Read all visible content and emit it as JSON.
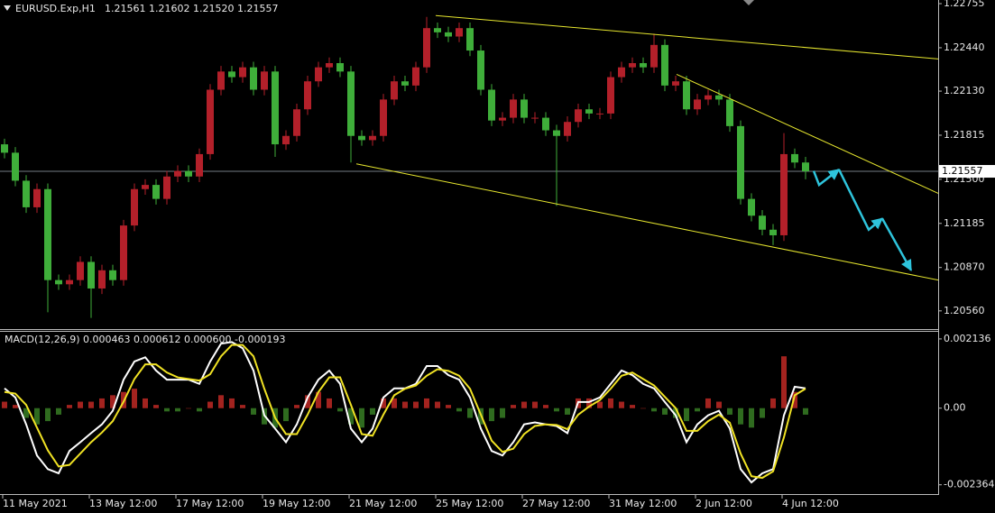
{
  "chart_data": [
    {
      "type": "candlestick",
      "title": "EURUSD.Exp,H1",
      "subtitle": "1.21561 1.21602 1.21520 1.21557",
      "up_color": "#b3202a",
      "down_color": "#3fae3a",
      "x": [
        0,
        6,
        12,
        18,
        24,
        30,
        36,
        42,
        48,
        54,
        60,
        66,
        72,
        78,
        84,
        90,
        96,
        102,
        108,
        114,
        120,
        126,
        132,
        138,
        144,
        150,
        156,
        162,
        168,
        174,
        180,
        186,
        192,
        198,
        204,
        210,
        216,
        222,
        228,
        234,
        240,
        246,
        252,
        258,
        264,
        270,
        276,
        282,
        288,
        294,
        300,
        306,
        312,
        318,
        324,
        330,
        336,
        342,
        348,
        354,
        360,
        366,
        372,
        378,
        384,
        390,
        396,
        402,
        408,
        414,
        420,
        426,
        432,
        438,
        444
      ],
      "open": [
        1.2175,
        1.2169,
        1.2149,
        1.213,
        1.2143,
        1.2078,
        1.2075,
        1.2078,
        1.2091,
        1.2072,
        1.2085,
        1.2078,
        1.2117,
        1.2143,
        1.2146,
        1.2136,
        1.2152,
        1.2156,
        1.2152,
        1.2168,
        1.2214,
        1.2227,
        1.2223,
        1.223,
        1.2214,
        1.2227,
        1.2175,
        1.2181,
        1.22,
        1.222,
        1.223,
        1.2233,
        1.2227,
        1.2181,
        1.2178,
        1.2181,
        1.2207,
        1.222,
        1.2217,
        1.223,
        1.2258,
        1.2255,
        1.2252,
        1.2258,
        1.2242,
        1.2214,
        1.2192,
        1.2194,
        1.2207,
        1.2194,
        1.2194,
        1.2185,
        1.2181,
        1.2191,
        1.22,
        1.2197,
        1.2197,
        1.2223,
        1.223,
        1.2233,
        1.223,
        1.2246,
        1.2217,
        1.222,
        1.22,
        1.2207,
        1.221,
        1.2207,
        1.2188,
        1.2136,
        1.2124,
        1.2114,
        1.211,
        1.2168,
        1.2162
      ],
      "high": [
        1.2179,
        1.2173,
        1.2153,
        1.2147,
        1.2147,
        1.2082,
        1.2082,
        1.2095,
        1.2095,
        1.2089,
        1.2089,
        1.2121,
        1.2147,
        1.215,
        1.215,
        1.2156,
        1.216,
        1.216,
        1.2172,
        1.2218,
        1.2231,
        1.2231,
        1.2234,
        1.2234,
        1.2231,
        1.2231,
        1.2185,
        1.2204,
        1.2224,
        1.2234,
        1.2237,
        1.2237,
        1.2231,
        1.2185,
        1.2185,
        1.2211,
        1.2224,
        1.2224,
        1.2234,
        1.2266,
        1.2262,
        1.2259,
        1.2262,
        1.2262,
        1.2246,
        1.2218,
        1.2198,
        1.2211,
        1.2211,
        1.2198,
        1.2198,
        1.2189,
        1.2195,
        1.2204,
        1.2204,
        1.2201,
        1.2227,
        1.2234,
        1.2237,
        1.2237,
        1.2254,
        1.225,
        1.2224,
        1.2224,
        1.2211,
        1.2214,
        1.2214,
        1.2211,
        1.2192,
        1.214,
        1.2128,
        1.2118,
        1.2183,
        1.2172,
        1.2166
      ],
      "low": [
        1.2165,
        1.2145,
        1.2126,
        1.2126,
        1.2055,
        1.2071,
        1.2071,
        1.2074,
        1.2051,
        1.2068,
        1.2074,
        1.2074,
        1.2113,
        1.2139,
        1.2132,
        1.2132,
        1.2148,
        1.2148,
        1.2148,
        1.2164,
        1.221,
        1.2219,
        1.2219,
        1.221,
        1.221,
        1.2166,
        1.2171,
        1.2177,
        1.2196,
        1.2216,
        1.2226,
        1.2223,
        1.2162,
        1.2174,
        1.2174,
        1.2177,
        1.2203,
        1.2213,
        1.2213,
        1.2226,
        1.2251,
        1.2248,
        1.2248,
        1.2238,
        1.221,
        1.2188,
        1.2188,
        1.219,
        1.219,
        1.219,
        1.2181,
        1.2131,
        1.2177,
        1.2187,
        1.2193,
        1.2193,
        1.2193,
        1.2219,
        1.2226,
        1.2226,
        1.2226,
        1.2213,
        1.2213,
        1.2196,
        1.2196,
        1.2203,
        1.2203,
        1.2184,
        1.2132,
        1.212,
        1.211,
        1.2103,
        1.2106,
        1.2158,
        1.215
      ],
      "close": [
        1.2169,
        1.2149,
        1.213,
        1.2143,
        1.2078,
        1.2075,
        1.2078,
        1.2091,
        1.2072,
        1.2085,
        1.2078,
        1.2117,
        1.2143,
        1.2146,
        1.2136,
        1.2152,
        1.2156,
        1.2152,
        1.2168,
        1.2214,
        1.2227,
        1.2223,
        1.223,
        1.2214,
        1.2227,
        1.2175,
        1.2181,
        1.22,
        1.222,
        1.223,
        1.2233,
        1.2227,
        1.2181,
        1.2178,
        1.2181,
        1.2207,
        1.222,
        1.2217,
        1.223,
        1.2258,
        1.2255,
        1.2252,
        1.2258,
        1.2242,
        1.2214,
        1.2192,
        1.2194,
        1.2207,
        1.2194,
        1.2194,
        1.2185,
        1.2181,
        1.2191,
        1.22,
        1.2197,
        1.2197,
        1.2223,
        1.223,
        1.2233,
        1.223,
        1.2246,
        1.2217,
        1.222,
        1.22,
        1.2207,
        1.221,
        1.2207,
        1.2188,
        1.2136,
        1.2124,
        1.2114,
        1.211,
        1.2168,
        1.2162,
        1.21557
      ],
      "current_price": 1.21557,
      "trendlines": [
        {
          "color": "#e6e62e",
          "x": [
            239,
            517.5
          ],
          "y": [
            1.2267,
            1.2236
          ]
        },
        {
          "color": "#e6e62e",
          "x": [
            195,
            517.5
          ],
          "y": [
            1.2161,
            1.2078
          ]
        },
        {
          "color": "#e6e62e",
          "x": [
            372.5,
            517.5
          ],
          "y": [
            1.2225,
            1.214
          ]
        }
      ],
      "arrows": [
        {
          "color": "#2ec4dc",
          "x": [
            448.5,
            451.5,
            462.5
          ],
          "y": [
            1.2156,
            1.2146,
            1.2157
          ]
        },
        {
          "color": "#2ec4dc",
          "x": [
            462.5,
            479,
            486.5
          ],
          "y": [
            1.2157,
            1.2114,
            1.2122
          ]
        },
        {
          "color": "#2ec4dc",
          "x": [
            486.5,
            502.5
          ],
          "y": [
            1.2122,
            1.2085
          ]
        }
      ],
      "xlim": [
        -2.5,
        517.5
      ],
      "ylim": [
        1.2043,
        1.22781
      ],
      "yticks": [
        1.22755,
        {
          "value": 1.2244,
          "label": "1.22440"
        },
        {
          "value": 1.2213,
          "label": "1.22130"
        },
        1.21815,
        {
          "value": 1.215,
          "label": "1.21500"
        },
        1.21185,
        {
          "value": 1.2087,
          "label": "1.20870"
        },
        {
          "value": 1.2056,
          "label": "1.20560"
        }
      ],
      "xticks": [
        {
          "value": -1,
          "label": "11 May 2021"
        },
        {
          "value": 47,
          "label": "13 May 12:00"
        },
        {
          "value": 95,
          "label": "17 May 12:00"
        },
        {
          "value": 143,
          "label": "19 May 12:00"
        },
        {
          "value": 191,
          "label": "21 May 12:00"
        },
        {
          "value": 239,
          "label": "25 May 12:00"
        },
        {
          "value": 287,
          "label": "27 May 12:00"
        },
        {
          "value": 335,
          "label": "31 May 12:00"
        },
        {
          "value": 383,
          "label": "2 Jun 12:00"
        },
        {
          "value": 431,
          "label": "4 Jun 12:00"
        }
      ]
    },
    {
      "type": "macd",
      "title": "MACD(12,26,9) 0.000463 0.000612 0.000600 -0.000193",
      "x": [
        0,
        6,
        12,
        18,
        24,
        30,
        36,
        42,
        48,
        54,
        60,
        66,
        72,
        78,
        84,
        90,
        96,
        102,
        108,
        114,
        120,
        126,
        132,
        138,
        144,
        150,
        156,
        162,
        168,
        174,
        180,
        186,
        192,
        198,
        204,
        210,
        216,
        222,
        228,
        234,
        240,
        246,
        252,
        258,
        264,
        270,
        276,
        282,
        288,
        294,
        300,
        306,
        312,
        318,
        324,
        330,
        336,
        342,
        348,
        354,
        360,
        366,
        372,
        378,
        384,
        390,
        396,
        402,
        408,
        414,
        420,
        426,
        432,
        438,
        444
      ],
      "histogram": {
        "up_color": "#a3231f",
        "down_color": "#2f6b1f",
        "values": [
          0.0002,
          0.0001,
          -0.0003,
          -0.0005,
          -0.0004,
          -0.0002,
          0.0001,
          0.0002,
          0.0002,
          0.0003,
          0.0004,
          0.0005,
          0.0006,
          0.0003,
          0.0001,
          -0.0001,
          -0.0001,
          0,
          -0.0001,
          0.0002,
          0.0004,
          0.0003,
          0.0001,
          -0.0002,
          -0.0005,
          -0.0006,
          -0.0004,
          0.0001,
          0.0004,
          0.0005,
          0.0003,
          -0.0001,
          -0.0005,
          -0.0006,
          -0.0002,
          0.0003,
          0.0003,
          0.0002,
          0.0002,
          0.0003,
          0.0002,
          0.0001,
          -0.0001,
          -0.0003,
          -0.0005,
          -0.0004,
          -0.0003,
          0.0001,
          0.0002,
          0.0002,
          0.0001,
          -0.0001,
          -0.0002,
          0.0003,
          0.0003,
          0.0002,
          0.0003,
          0.0002,
          0.0001,
          0,
          -0.0001,
          -0.0002,
          -0.0003,
          -0.0004,
          -0.0001,
          0.0003,
          0.0002,
          -0.0002,
          -0.0005,
          -0.0006,
          -0.0003,
          0.0003,
          0.0016,
          0.0005,
          -0.0002
        ]
      },
      "series": [
        {
          "color": "#ffffff",
          "values": [
            0.00061,
            0.00033,
            -0.0005,
            -0.00146,
            -0.00188,
            -0.00201,
            -0.00132,
            -0.00105,
            -0.00077,
            -0.0005,
            -8e-05,
            0.00088,
            0.00144,
            0.00157,
            0.00116,
            0.00088,
            0.00088,
            0.00088,
            0.00075,
            0.00144,
            0.00199,
            0.00204,
            0.00185,
            0.00116,
            -0.00022,
            -0.00063,
            -0.00105,
            -0.0005,
            0.00033,
            0.00088,
            0.00116,
            0.00075,
            -0.00063,
            -0.00105,
            -0.00063,
            0.00033,
            0.00061,
            0.00061,
            0.00075,
            0.0013,
            0.0013,
            0.00102,
            0.00088,
            0.00033,
            -0.00063,
            -0.00132,
            -0.00146,
            -0.00105,
            -0.0005,
            -0.00044,
            -0.0005,
            -0.00055,
            -0.00077,
            0.00019,
            0.00019,
            0.00033,
            0.00075,
            0.00116,
            0.00102,
            0.00075,
            0.00061,
            0.00019,
            -0.00022,
            -0.00105,
            -0.0005,
            -0.00022,
            -8e-05,
            -0.00063,
            -0.00188,
            -0.00229,
            -0.00201,
            -0.00188,
            -0.00022,
            0.00066,
            0.000612
          ]
        },
        {
          "color": "#f0e224",
          "values": [
            0.0005,
            0.00045,
            0.0001,
            -0.0006,
            -0.0013,
            -0.0018,
            -0.00175,
            -0.0014,
            -0.00105,
            -0.00075,
            -0.0004,
            0.0002,
            0.0009,
            0.00135,
            0.00135,
            0.0011,
            0.00095,
            0.0009,
            0.00085,
            0.00105,
            0.0016,
            0.00195,
            0.00195,
            0.0016,
            0.0006,
            -0.0003,
            -0.0008,
            -0.0008,
            -0.0002,
            0.0005,
            0.00095,
            0.00095,
            0.0001,
            -0.0008,
            -0.00085,
            -0.0002,
            0.0004,
            0.0006,
            0.0007,
            0.001,
            0.0012,
            0.00115,
            0.001,
            0.0006,
            -0.0002,
            -0.001,
            -0.00135,
            -0.00125,
            -0.0008,
            -0.00055,
            -0.0005,
            -0.00052,
            -0.00065,
            -0.0002,
            5e-05,
            0.00025,
            0.0006,
            0.001,
            0.0011,
            0.0009,
            0.0007,
            0.00035,
            0,
            -0.0007,
            -0.0007,
            -0.0004,
            -0.0002,
            -0.00045,
            -0.0014,
            -0.0021,
            -0.00215,
            -0.00195,
            -0.0009,
            0.0004,
            0.0006
          ]
        }
      ],
      "xlim": [
        -2.5,
        517.5
      ],
      "ylim": [
        -0.00265,
        0.002384
      ],
      "yticks": [
        0.002136,
        {
          "value": 0,
          "label": "0.00"
        },
        -0.002364
      ]
    }
  ]
}
